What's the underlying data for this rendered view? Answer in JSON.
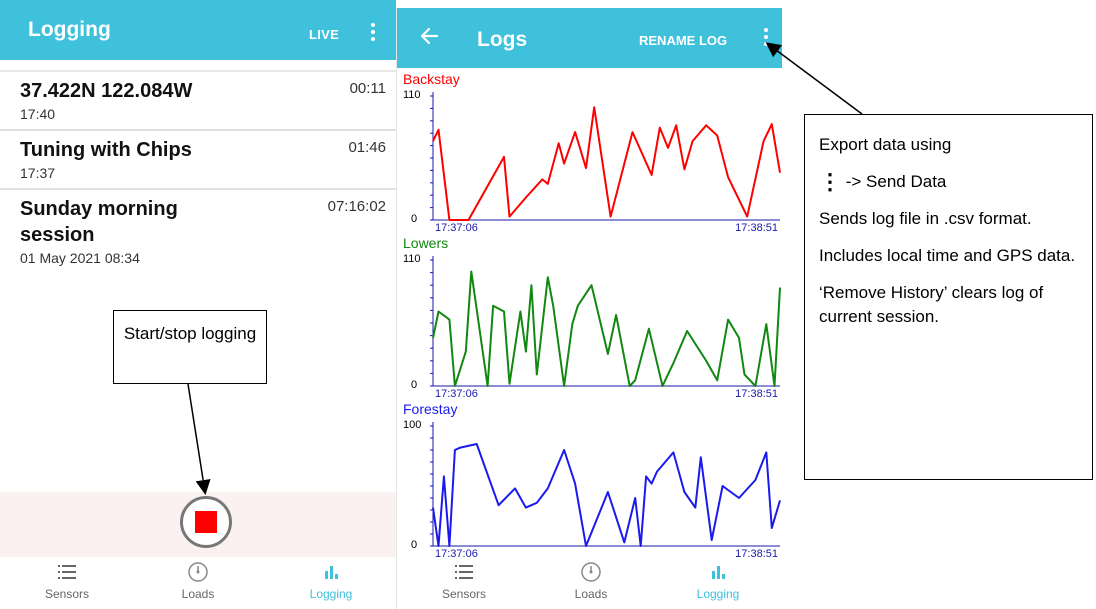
{
  "left_screen": {
    "appbar": {
      "title": "Logging",
      "live_label": "LIVE"
    },
    "logs": [
      {
        "name": "37.422N 122.084W",
        "duration": "00:11",
        "time": "17:40"
      },
      {
        "name": "Tuning with Chips",
        "duration": "01:46",
        "time": "17:37"
      },
      {
        "name": "Sunday morning session",
        "duration": "07:16:02",
        "time": "01 May 2021 08:34"
      }
    ],
    "record_button": {
      "color": "#ff0000"
    }
  },
  "right_screen": {
    "appbar": {
      "title": "Logs",
      "rename_label": "RENAME LOG"
    }
  },
  "bottom_nav": {
    "items": [
      {
        "label": "Sensors",
        "icon": "list-icon"
      },
      {
        "label": "Loads",
        "icon": "gauge-icon"
      },
      {
        "label": "Logging",
        "icon": "bar-chart-icon",
        "active": true
      }
    ]
  },
  "colors": {
    "accent": "#3fc1dc",
    "backstay": "#ff0000",
    "lowers": "#118811",
    "forestay": "#1a1aee"
  },
  "callouts": {
    "start_stop": "Start/stop logging",
    "export": {
      "line1": "Export data using",
      "line2_suffix": "-> Send Data",
      "line3": "Sends log file in .csv format.",
      "line4": "Includes local time and GPS data.",
      "line5": "‘Remove History’ clears log of current session."
    }
  },
  "chart_data": [
    {
      "type": "line",
      "title": "Backstay",
      "color": "#ff0000",
      "ylim": [
        0,
        110
      ],
      "y_ticks": [
        "110",
        "0"
      ],
      "x_ticks": [
        "17:37:06",
        "17:38:51"
      ],
      "x": [
        0,
        2,
        6,
        13,
        26,
        28,
        34,
        40,
        42,
        46,
        48,
        52,
        56,
        59,
        65,
        73,
        80,
        83,
        86,
        89,
        92,
        95,
        100,
        104,
        108,
        115,
        121,
        124,
        127
      ],
      "values": [
        70,
        80,
        0,
        0,
        56,
        3,
        20,
        36,
        32,
        68,
        50,
        78,
        46,
        100,
        3,
        78,
        40,
        82,
        64,
        84,
        45,
        70,
        84,
        75,
        38,
        3,
        70,
        85,
        42
      ]
    },
    {
      "type": "line",
      "title": "Lowers",
      "color": "#118811",
      "ylim": [
        0,
        110
      ],
      "y_ticks": [
        "110",
        "0"
      ],
      "x_ticks": [
        "17:37:06",
        "17:38:51"
      ],
      "x": [
        0,
        2,
        6,
        8,
        12,
        14,
        20,
        22,
        26,
        28,
        32,
        34,
        36,
        38,
        42,
        44,
        48,
        51,
        53,
        58,
        64,
        67,
        72,
        74,
        79,
        84,
        88,
        93,
        100,
        104,
        108,
        112,
        114,
        118,
        122,
        125,
        127
      ],
      "values": [
        42,
        65,
        58,
        0,
        30,
        100,
        0,
        70,
        65,
        2,
        65,
        30,
        88,
        10,
        95,
        70,
        0,
        54,
        70,
        88,
        28,
        62,
        0,
        5,
        50,
        0,
        20,
        48,
        22,
        5,
        58,
        42,
        10,
        0,
        54,
        0,
        86
      ]
    },
    {
      "type": "line",
      "title": "Forestay",
      "color": "#1a1aee",
      "ylim": [
        0,
        100
      ],
      "y_ticks": [
        "100",
        "0"
      ],
      "x_ticks": [
        "17:37:06",
        "17:38:51"
      ],
      "x": [
        0,
        2,
        4,
        6,
        8,
        10,
        16,
        24,
        30,
        34,
        38,
        42,
        48,
        52,
        56,
        64,
        70,
        74,
        76,
        78,
        80,
        82,
        88,
        92,
        96,
        98,
        102,
        106,
        112,
        118,
        122,
        124,
        127
      ],
      "values": [
        32,
        0,
        58,
        0,
        80,
        82,
        85,
        34,
        48,
        32,
        36,
        48,
        80,
        52,
        0,
        45,
        3,
        40,
        0,
        58,
        52,
        62,
        78,
        45,
        32,
        74,
        5,
        50,
        40,
        55,
        78,
        15,
        38
      ]
    }
  ]
}
